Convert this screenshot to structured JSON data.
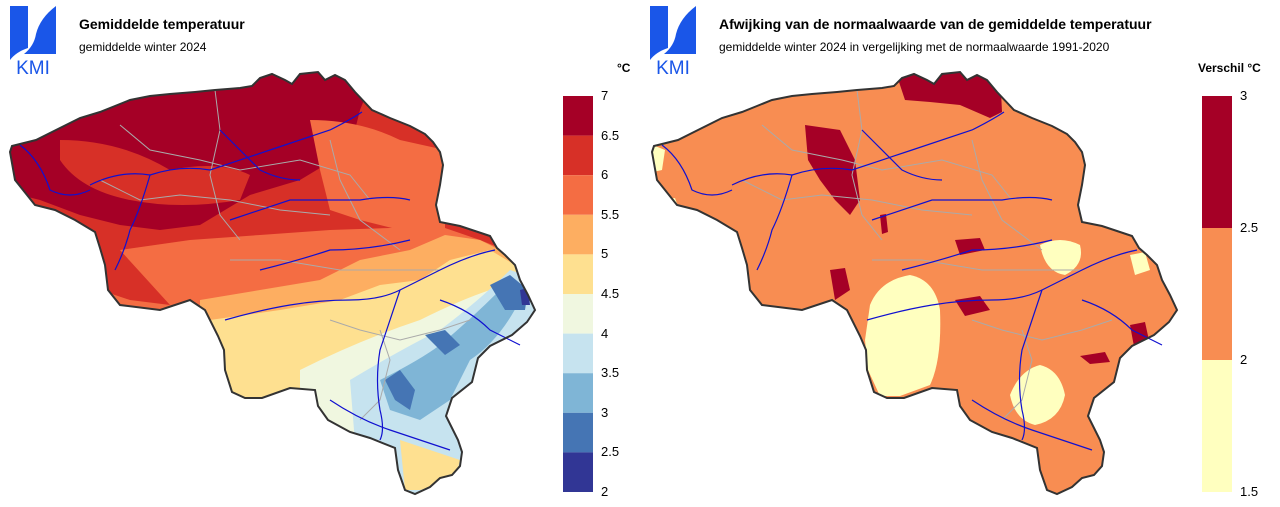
{
  "panels": [
    {
      "logo_text": "KMI",
      "title": "Gemiddelde temperatuur",
      "subtitle": "gemiddelde winter 2024",
      "legend_unit": "°C",
      "legend_ticks": [
        "7",
        "6.5",
        "6",
        "5.5",
        "5",
        "4.5",
        "4",
        "3.5",
        "3",
        "2.5",
        "2"
      ],
      "legend_colors": [
        "#a50026",
        "#d73027",
        "#f46d43",
        "#fdae61",
        "#fee090",
        "#f0f7e0",
        "#c6e3ef",
        "#7fb5d6",
        "#4575b4",
        "#313695"
      ]
    },
    {
      "logo_text": "KMI",
      "title": "Afwijking van de normaalwaarde van de gemiddelde temperatuur",
      "subtitle": "gemiddelde winter 2024 in vergelijking met de normaalwaarde 1991-2020",
      "legend_unit": "Verschil °C",
      "legend_ticks": [
        "3",
        "2.5",
        "2",
        "1.5"
      ],
      "legend_colors": [
        "#a50026",
        "#f88d52",
        "#ffffbf"
      ]
    }
  ],
  "colors": {
    "logo_blue": "#1a56e8",
    "border": "#333333",
    "province_lines": "#aaaaaa",
    "rivers": "#1010d0"
  }
}
